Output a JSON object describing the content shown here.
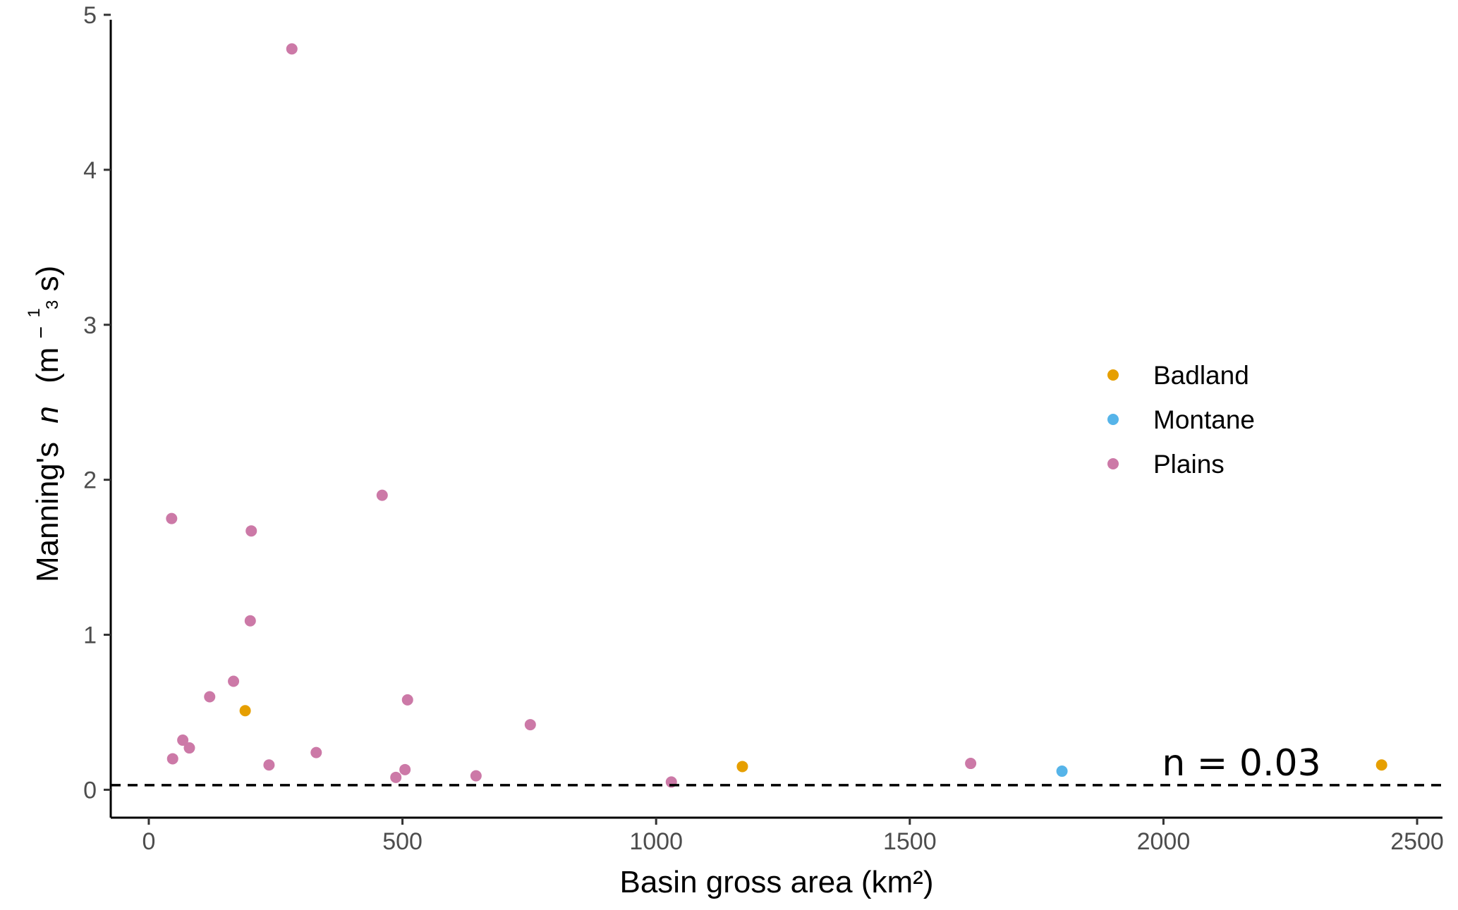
{
  "chart_data": {
    "type": "scatter",
    "xlabel": "Basin gross area (km²)",
    "ylabel_prefix": "Manning's",
    "ylabel_var": "n",
    "ylabel_unit_open": "(m",
    "ylabel_exp_sign": "−",
    "ylabel_exp_num": "1",
    "ylabel_exp_den": "3",
    "ylabel_unit_close": " s)",
    "xlim": [
      -75,
      2550
    ],
    "ylim": [
      -0.18,
      5.05
    ],
    "x_ticks": [
      0,
      500,
      1000,
      1500,
      2000,
      2500
    ],
    "x_tick_labels": [
      "0",
      "500",
      "1000",
      "1500",
      "2000",
      "2500"
    ],
    "y_ticks": [
      0,
      1,
      2,
      3,
      4,
      5
    ],
    "y_tick_labels": [
      "0",
      "1",
      "2",
      "3",
      "4",
      "5"
    ],
    "grid": false,
    "legend_position": "right",
    "reference_line": {
      "y": 0.03,
      "style": "dashed",
      "label": "n = 0.03"
    },
    "series": [
      {
        "name": "Badland",
        "color": "#E69F00",
        "points": [
          [
            190,
            0.51
          ],
          [
            1170,
            0.15
          ],
          [
            2430,
            0.16
          ]
        ]
      },
      {
        "name": "Montane",
        "color": "#56B4E9",
        "points": [
          [
            1800,
            0.12
          ]
        ]
      },
      {
        "name": "Plains",
        "color": "#CC79A7",
        "points": [
          [
            45,
            1.75
          ],
          [
            47,
            0.2
          ],
          [
            67,
            0.32
          ],
          [
            80,
            0.27
          ],
          [
            120,
            0.6
          ],
          [
            167,
            0.7
          ],
          [
            200,
            1.09
          ],
          [
            202,
            1.67
          ],
          [
            237,
            0.16
          ],
          [
            282,
            4.78
          ],
          [
            330,
            0.24
          ],
          [
            460,
            1.9
          ],
          [
            487,
            0.08
          ],
          [
            505,
            0.13
          ],
          [
            510,
            0.58
          ],
          [
            645,
            0.09
          ],
          [
            752,
            0.42
          ],
          [
            1030,
            0.05
          ],
          [
            1620,
            0.17
          ]
        ]
      }
    ]
  }
}
